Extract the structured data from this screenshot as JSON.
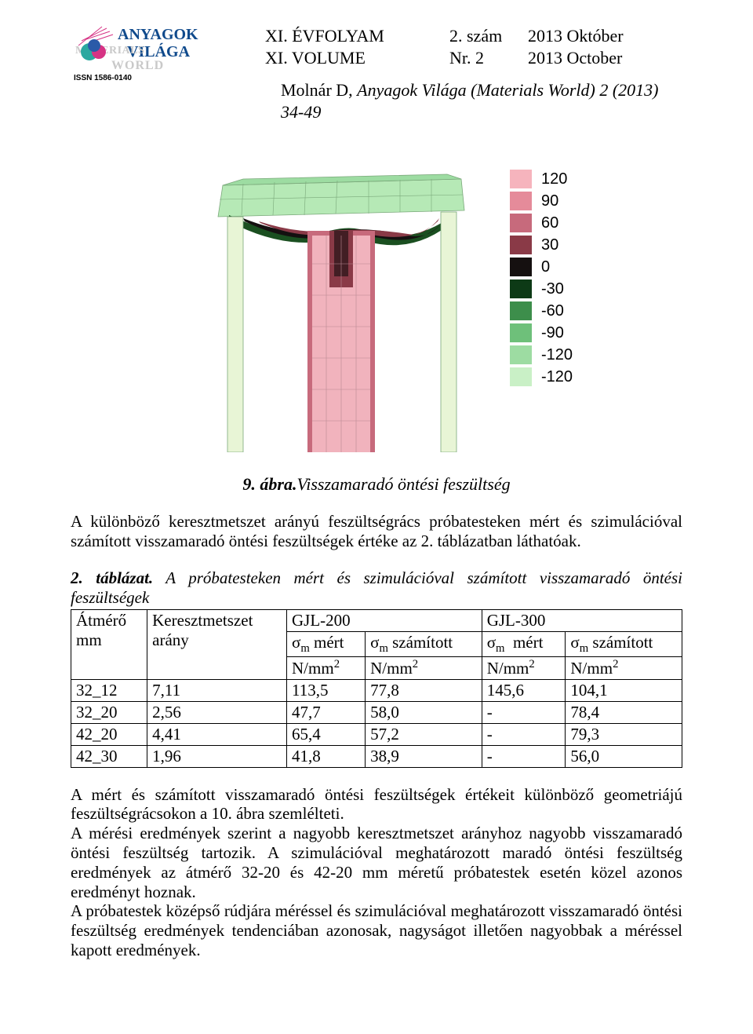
{
  "header": {
    "line1_left": "XI. ÉVFOLYAM",
    "line1_mid": "2. szám",
    "line1_right": "2013 Október",
    "line2_left": "XI. VOLUME",
    "line2_mid": "Nr. 2",
    "line2_right": "2013 October",
    "citation_author": "Molnár D, ",
    "citation_rest": "Anyagok Világa (Materials World) 2 (2013) 34-49",
    "logo_top": "ANYAGOK",
    "logo_mid": "VILÁGA",
    "logo_back": "MATERIALS WORLD",
    "logo_issn": "ISSN 1586-0140"
  },
  "figure": {
    "caption_num": "9. ábra.",
    "caption_text": "Visszamaradó öntési feszültség",
    "legend": [
      {
        "color": "#f6b4bd",
        "label": "120"
      },
      {
        "color": "#e58b9a",
        "label": "90"
      },
      {
        "color": "#c76a7c",
        "label": "60"
      },
      {
        "color": "#8a3a47",
        "label": "30"
      },
      {
        "color": "#151010",
        "label": "0"
      },
      {
        "color": "#0d3a16",
        "label": "-30"
      },
      {
        "color": "#3d8e4b",
        "label": "-60"
      },
      {
        "color": "#6ec07a",
        "label": "-90"
      },
      {
        "color": "#9ddca2",
        "label": "-120"
      },
      {
        "color": "#c9f0c6",
        "label": "-120"
      }
    ],
    "fem_colors": {
      "top_outer": "#b6e9b6",
      "top_mid": "#5fbd62",
      "top_dark": "#1a4f20",
      "black": "#141010",
      "pink_edge": "#c76a7c",
      "pink_fill": "#f1b3bd",
      "side_bar": "#e8f5d6",
      "mesh": "#7aa87a"
    }
  },
  "para1": "A különböző keresztmetszet arányú feszültségrács próbatesteken mért és szimulációval számított visszamaradó öntési feszültségek értéke az 2. táblázatban láthatóak.",
  "table": {
    "caption_num": "2. táblázat.",
    "caption_text": " A próbatesteken mért és szimulációval számított visszamaradó öntési feszültségek",
    "head_col0_l1": "Átmérő",
    "head_col0_l2": "mm",
    "head_col1_l1": "Keresztmetszet",
    "head_col1_l2": "arány",
    "gjl200": "GJL-200",
    "gjl300": "GJL-300",
    "sigma_mert_pre": "σ",
    "sigma_mert_sub": "m",
    "sigma_mert_post": " mért",
    "sigma_szam_post": " számított",
    "unit_pre": "N/mm",
    "unit_sup": "2",
    "rows": [
      [
        "32_12",
        "7,11",
        "113,5",
        "77,8",
        "145,6",
        "104,1"
      ],
      [
        "32_20",
        "2,56",
        "47,7",
        "58,0",
        "-",
        "78,4"
      ],
      [
        "42_20",
        "4,41",
        "65,4",
        "57,2",
        "-",
        "79,3"
      ],
      [
        "42_30",
        "1,96",
        "41,8",
        "38,9",
        "-",
        "56,0"
      ]
    ]
  },
  "para2": "A mért és számított visszamaradó öntési feszültségek értékeit különböző geometriájú feszültségrácsokon a 10. ábra szemlélteti.",
  "para3": "A mérési eredmények szerint a nagyobb keresztmetszet arányhoz nagyobb visszamaradó öntési feszültség tartozik. A szimulációval meghatározott maradó öntési feszültség eredmények az átmérő 32-20 és 42-20 mm méretű próbatestek esetén közel azonos eredményt hoznak.",
  "para4": "A próbatestek középső rúdjára méréssel és szimulációval meghatározott visszamaradó öntési feszültség eredmények tendenciában azonosak, nagyságot illetően nagyobbak a méréssel kapott eredmények."
}
